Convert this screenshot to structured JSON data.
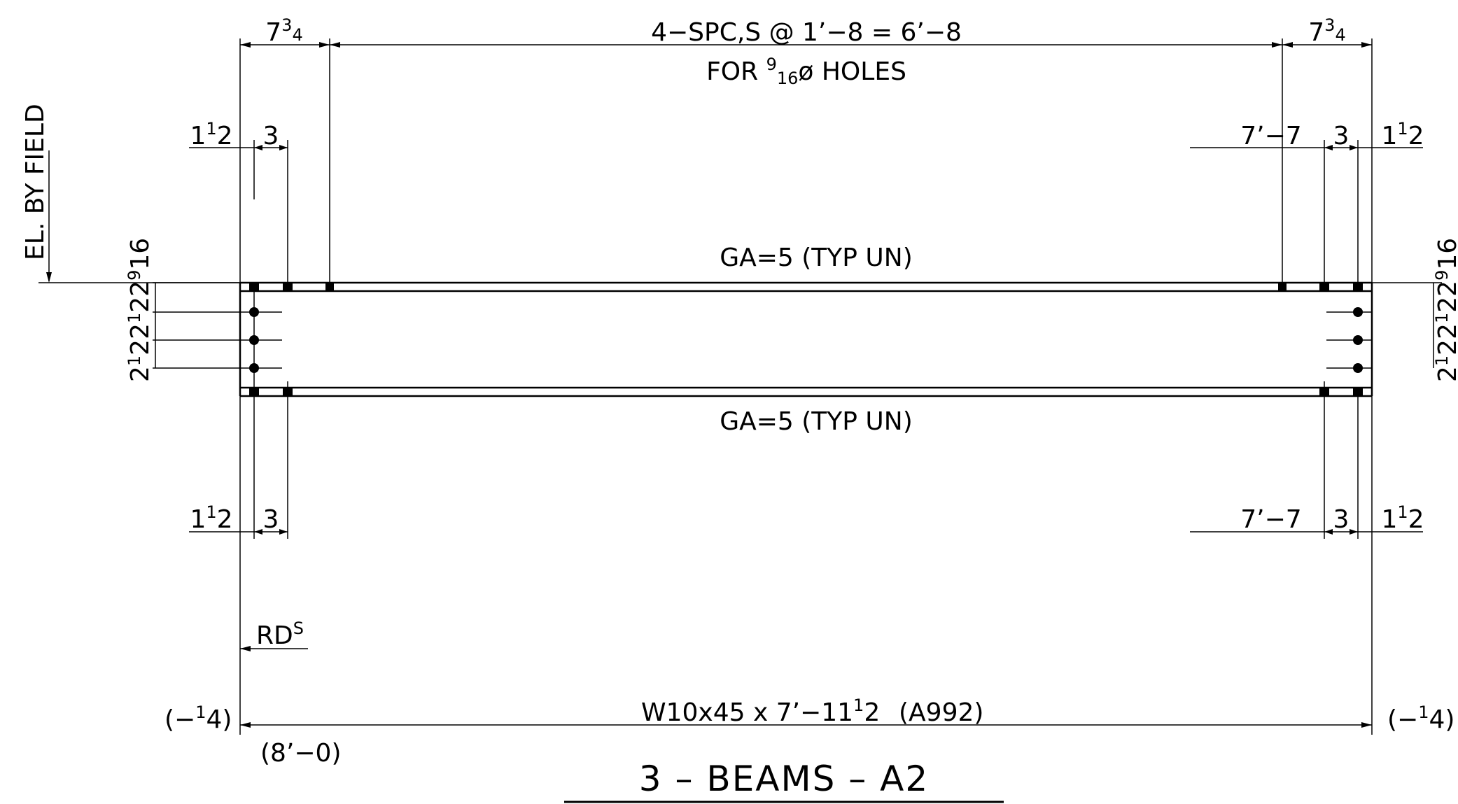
{
  "top": {
    "spacing": "4−SPC,S @ 1’−8 = 6’−8",
    "holes_prefix": "FOR ",
    "holes_num": "9",
    "holes_den": "16",
    "holes_suffix": "ø HOLES",
    "left_edge_whole": "7",
    "left_edge_num": "3",
    "left_edge_den": "4",
    "right_edge_whole": "7",
    "right_edge_num": "3",
    "right_edge_den": "4"
  },
  "dims": {
    "one_half_whole": "1",
    "one_half_num": "1",
    "one_half_den": "2",
    "three": "3",
    "seven_seven": "7’−7"
  },
  "gage": {
    "top": "GA=5 (TYP UN)",
    "bottom": "GA=5 (TYP UN)"
  },
  "elevation": {
    "label": "EL. BY FIELD"
  },
  "vertical_dims": {
    "a_whole": "2",
    "a_num": "1",
    "a_den": "2",
    "b_whole": "2",
    "b_num": "1",
    "b_den": "2",
    "c_whole": "2",
    "c_num": "9",
    "c_den": "16"
  },
  "reference": {
    "label": "RD",
    "sup": "S"
  },
  "member": {
    "desc_a": "W10x45 x 7’−11",
    "desc_num": "1",
    "desc_den": "2",
    "grade": "(A992)",
    "left_adj_open": "(−",
    "left_adj_num": "1",
    "left_adj_den": "4",
    "left_adj_close": ")",
    "right_adj_open": "(−",
    "right_adj_num": "1",
    "right_adj_den": "4",
    "right_adj_close": ")",
    "overall": "(8’−0)"
  },
  "title": "3 – BEAMS – A2"
}
